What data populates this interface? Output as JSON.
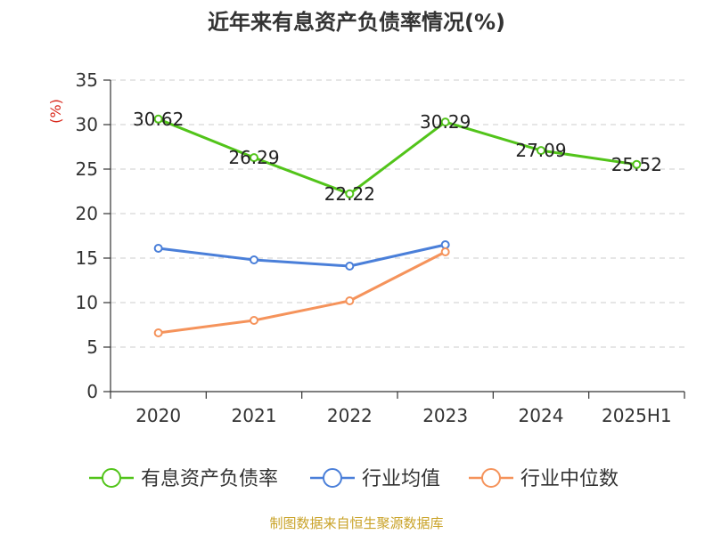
{
  "chart_data": {
    "type": "line",
    "title": "近年来有息资产负债率情况(%)",
    "unit_label": "(%)",
    "categories": [
      "2020",
      "2021",
      "2022",
      "2023",
      "2024",
      "2025H1"
    ],
    "ylim": [
      0,
      35
    ],
    "yticks": [
      0,
      5,
      10,
      15,
      20,
      25,
      30,
      35
    ],
    "grid": true,
    "legend_position": "bottom",
    "series": [
      {
        "name": "有息资产负债率",
        "color": "#52c41a",
        "values": [
          30.62,
          26.29,
          22.22,
          30.29,
          27.09,
          25.52
        ],
        "data_labels": [
          "30.62",
          "26.29",
          "22.22",
          "30.29",
          "27.09",
          "25.52"
        ]
      },
      {
        "name": "行业均值",
        "color": "#4a7fd9",
        "values": [
          16.1,
          14.8,
          14.1,
          16.5,
          null,
          null
        ]
      },
      {
        "name": "行业中位数",
        "color": "#f5935b",
        "values": [
          6.6,
          8.0,
          10.2,
          15.7,
          null,
          null
        ]
      }
    ]
  },
  "source_text": "制图数据来自恒生聚源数据库",
  "colors": {
    "source": "#c9a227",
    "unit": "#d9281c",
    "axis": "#333333",
    "grid": "#cccccc"
  }
}
